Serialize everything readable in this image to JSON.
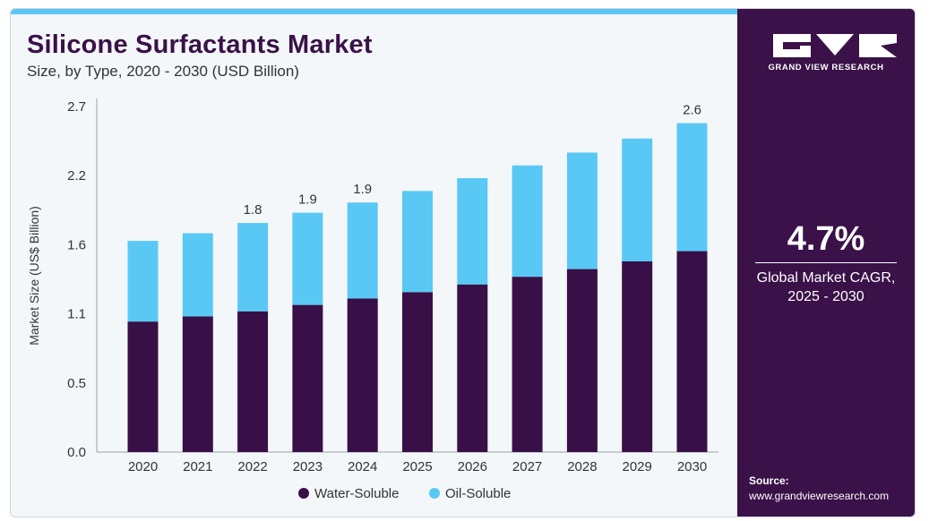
{
  "header": {
    "title": "Silicone Surfactants Market",
    "subtitle": "Size, by Type, 2020 - 2030 (USD Billion)"
  },
  "brand": {
    "logo_text": "GRAND VIEW RESEARCH",
    "logo_icon": "gvr-logo-icon"
  },
  "cagr": {
    "value": "4.7%",
    "label_line1": "Global Market CAGR,",
    "label_line2": "2025 - 2030"
  },
  "source": {
    "label": "Source:",
    "url": "www.grandviewresearch.com"
  },
  "colors": {
    "water_soluble": "#381047",
    "oil_soluble": "#5ac8f5",
    "panel": "#3a1148",
    "accent_strip": "#5ac8f5"
  },
  "chart_data": {
    "type": "bar",
    "stacked": true,
    "title": "Silicone Surfactants Market",
    "subtitle": "Size, by Type, 2020 - 2030 (USD Billion)",
    "xlabel": "",
    "ylabel": "Market Size (US$ Billion)",
    "categories": [
      "2020",
      "2021",
      "2022",
      "2023",
      "2024",
      "2025",
      "2026",
      "2027",
      "2028",
      "2029",
      "2030"
    ],
    "series": [
      {
        "name": "Water-Soluble",
        "color": "#381047",
        "values": [
          1.02,
          1.06,
          1.1,
          1.15,
          1.2,
          1.25,
          1.31,
          1.37,
          1.43,
          1.49,
          1.57
        ]
      },
      {
        "name": "Oil-Soluble",
        "color": "#5ac8f5",
        "values": [
          0.63,
          0.65,
          0.69,
          0.72,
          0.75,
          0.79,
          0.83,
          0.87,
          0.91,
          0.96,
          1.0
        ]
      }
    ],
    "data_labels": [
      "",
      "",
      "1.8",
      "1.9",
      "1.9",
      "",
      "",
      "",
      "",
      "",
      "2.6"
    ],
    "y_ticks": [
      "0.0",
      "0.5",
      "1.1",
      "1.6",
      "2.2",
      "2.7"
    ],
    "ylim": [
      0,
      2.7
    ],
    "grid": false,
    "legend_position": "bottom"
  }
}
